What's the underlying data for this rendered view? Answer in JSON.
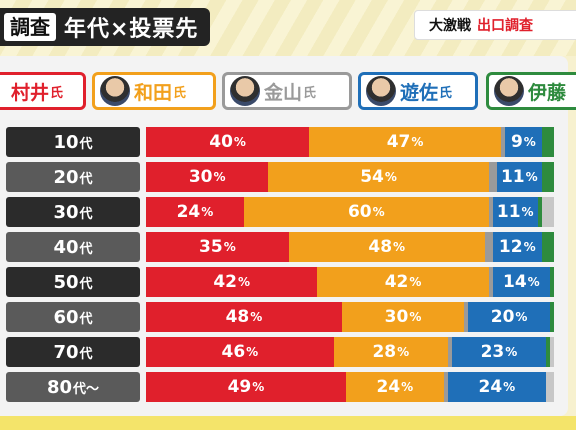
{
  "header": {
    "tag": "調査",
    "title": "年代×投票先",
    "badge_1": "大激戦",
    "badge_2": "出口調査"
  },
  "candidates": [
    {
      "name": "村井",
      "suffix": "氏",
      "color": "#e0202c",
      "icon": "photo-icon"
    },
    {
      "name": "和田",
      "suffix": "氏",
      "color": "#f2a01c",
      "icon": "photo-icon"
    },
    {
      "name": "金山",
      "suffix": "氏",
      "color": "#9a9a9a",
      "icon": "photo-icon"
    },
    {
      "name": "遊佐",
      "suffix": "氏",
      "color": "#1f6fb8",
      "icon": "photo-icon"
    },
    {
      "name": "伊藤",
      "suffix": "",
      "color": "#2e8b3e",
      "icon": "photo-icon"
    }
  ],
  "chart_data": {
    "type": "bar",
    "orientation": "horizontal-stacked-100",
    "title": "年代×投票先",
    "categories": [
      "10代",
      "20代",
      "30代",
      "40代",
      "50代",
      "60代",
      "70代",
      "80代〜"
    ],
    "category_labels": [
      {
        "num": "10",
        "suffix": "代"
      },
      {
        "num": "20",
        "suffix": "代"
      },
      {
        "num": "30",
        "suffix": "代"
      },
      {
        "num": "40",
        "suffix": "代"
      },
      {
        "num": "50",
        "suffix": "代"
      },
      {
        "num": "60",
        "suffix": "代"
      },
      {
        "num": "70",
        "suffix": "代"
      },
      {
        "num": "80",
        "suffix": "代〜"
      }
    ],
    "unit": "%",
    "series": [
      {
        "name": "村井氏",
        "color": "#e0202c",
        "values": [
          40,
          30,
          24,
          35,
          42,
          48,
          46,
          49
        ]
      },
      {
        "name": "和田氏",
        "color": "#f2a01c",
        "values": [
          47,
          54,
          60,
          48,
          42,
          30,
          28,
          24
        ]
      },
      {
        "name": "金山氏",
        "color": "#9a9a9a",
        "values": [
          1,
          2,
          1,
          2,
          1,
          1,
          1,
          1
        ]
      },
      {
        "name": "遊佐氏",
        "color": "#1f6fb8",
        "values": [
          9,
          11,
          11,
          12,
          14,
          20,
          23,
          24
        ]
      },
      {
        "name": "伊藤",
        "color": "#2e8b3e",
        "values": [
          3,
          3,
          1,
          3,
          1,
          1,
          1,
          0
        ]
      }
    ],
    "labeled_series": [
      "村井氏",
      "和田氏",
      "遊佐氏"
    ],
    "row_label_colors": [
      "#2b2b2b",
      "#5a5a5a"
    ],
    "grid": false
  }
}
